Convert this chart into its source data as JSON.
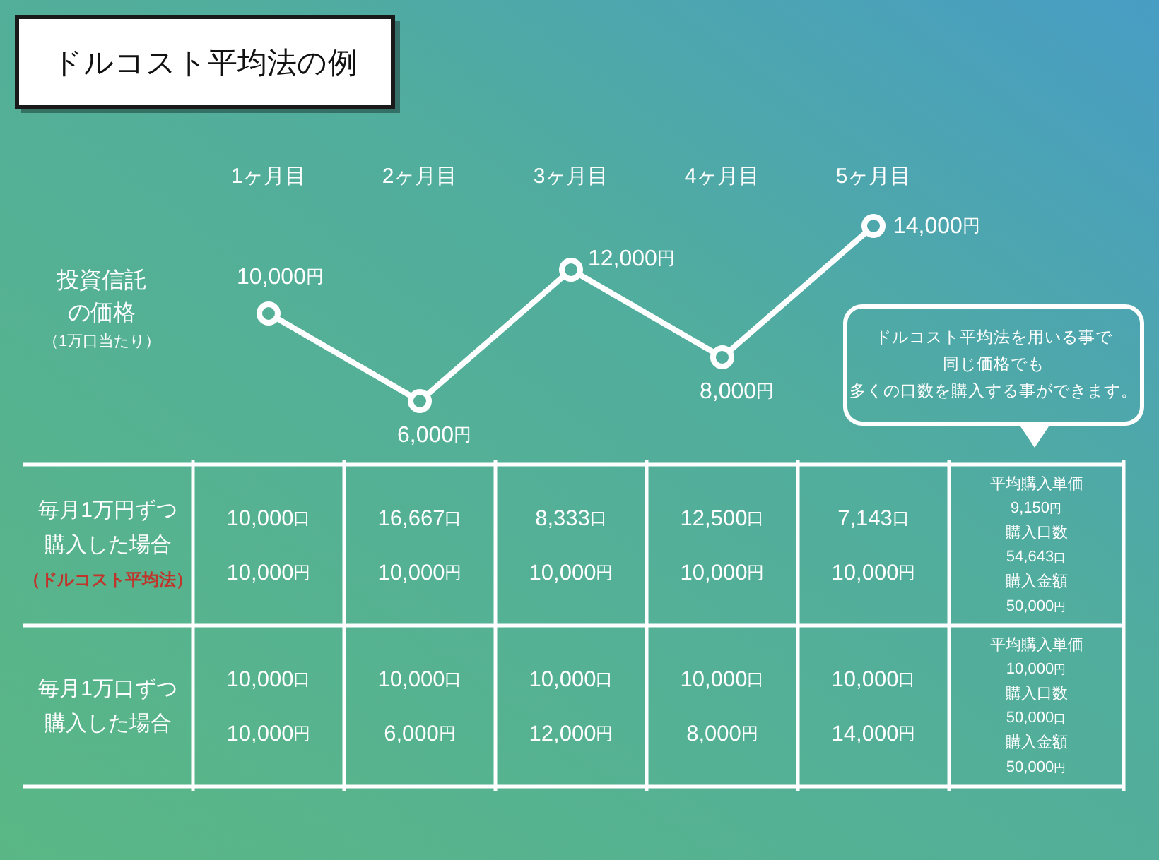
{
  "chart_data": [
    {
      "type": "line",
      "title": "ドルコスト平均法の例",
      "ylabel": "投資信託の価格（1万口当たり）",
      "categories": [
        "1ヶ月目",
        "2ヶ月目",
        "3ヶ月目",
        "4ヶ月目",
        "5ヶ月目"
      ],
      "values": [
        10000,
        6000,
        12000,
        8000,
        14000
      ],
      "value_labels": [
        "10,000円",
        "6,000円",
        "12,000円",
        "8,000円",
        "14,000円"
      ],
      "color": "#ffffff",
      "marker": "circle",
      "annotations": [
        "ドルコスト平均法を用いる事で",
        "同じ価格でも",
        "多くの口数を購入する事ができます。"
      ]
    },
    {
      "type": "other",
      "y_categories": [
        "毎月1万円ずつ購入した場合（ドルコスト平均法）",
        "毎月1万口ずつ購入した場合"
      ],
      "cell_labels": [
        [
          "10,000口10,000円",
          "16,667口10,000円",
          "8,333口10,000円",
          "12,500口10,000円",
          "7,143口10,000円",
          "平均購入単価9,150円購入口数54,643口購入金額50,000円"
        ],
        [
          "10,000口10,000円",
          "10,000口6,000円",
          "10,000口12,000円",
          "10,000口8,000円",
          "10,000口14,000円",
          "平均購入単価10,000円購入口数50,000口購入金額50,000円"
        ]
      ]
    }
  ]
}
